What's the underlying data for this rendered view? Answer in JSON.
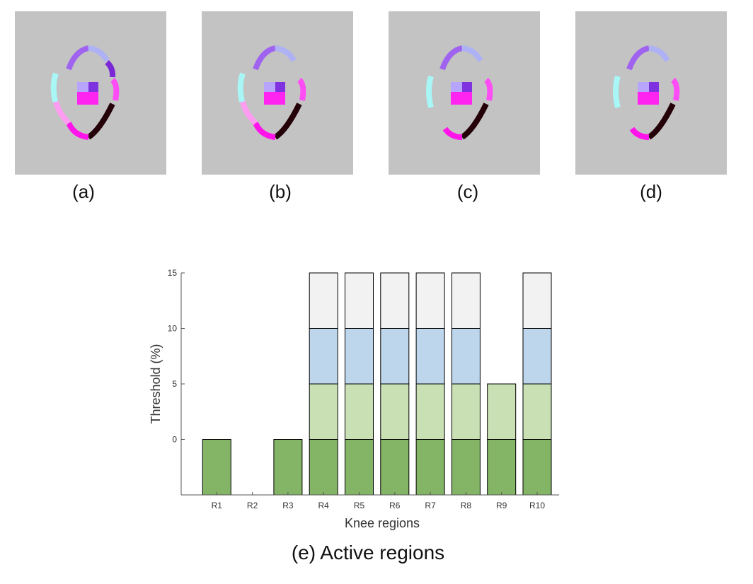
{
  "panels": [
    {
      "label": "(a)"
    },
    {
      "label": "(b)"
    },
    {
      "label": "(c)"
    },
    {
      "label": "(d)"
    }
  ],
  "chart_caption": "(e) Active regions",
  "colors": {
    "panel_bg": "#c3c3c3",
    "seg_dark_green": "#84b466",
    "seg_light_green": "#c9e0b5",
    "seg_light_blue": "#bed6ec",
    "seg_light_gray": "#f2f2f2"
  },
  "chart_data": {
    "type": "bar",
    "stacked": true,
    "categories": [
      "R1",
      "R2",
      "R3",
      "R4",
      "R5",
      "R6",
      "R7",
      "R8",
      "R9",
      "R10"
    ],
    "active_levels": [
      [
        0
      ],
      [],
      [
        0
      ],
      [
        0,
        5,
        10,
        15
      ],
      [
        0,
        5,
        10,
        15
      ],
      [
        0,
        5,
        10,
        15
      ],
      [
        0,
        5,
        10,
        15
      ],
      [
        0,
        5,
        10,
        15
      ],
      [
        0,
        5
      ],
      [
        0,
        5,
        10,
        15
      ]
    ],
    "level_colors": {
      "0": "#84b466",
      "5": "#c9e0b5",
      "10": "#bed6ec",
      "15": "#f2f2f2"
    },
    "xlabel": "Knee regions",
    "ylabel": "Threshold (%)",
    "yticks": [
      0,
      5,
      10,
      15
    ],
    "ylim": [
      -5,
      15
    ],
    "grid": false,
    "legend": "none"
  }
}
